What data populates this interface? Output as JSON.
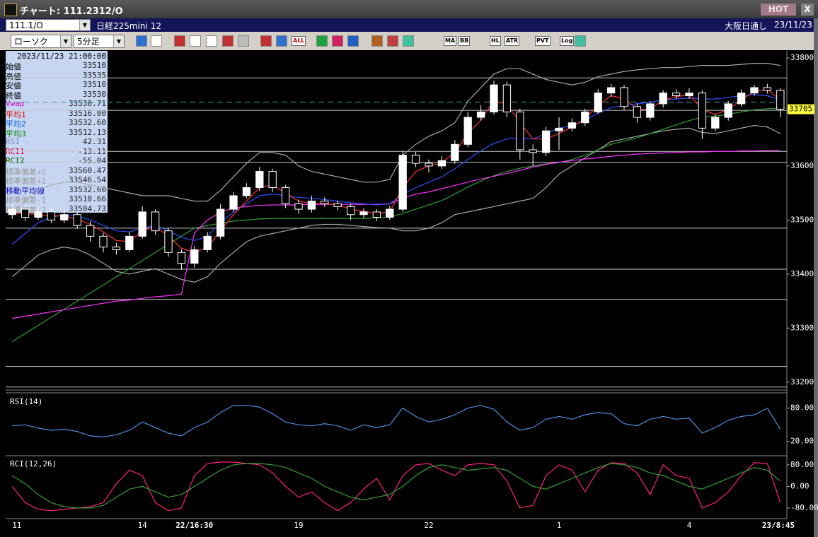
{
  "window": {
    "title": "チャート: 111.2312/O",
    "hot": "HOT",
    "close": "X",
    "symbol": "111.1/O",
    "instrument": "日経225mini 12",
    "market": "大阪日通し",
    "date": "23/11/23"
  },
  "toolbar": {
    "chart_type": "ローソク",
    "timeframe": "5分足",
    "labels": [
      "ALL",
      "MA",
      "BB",
      "HL",
      "ATR",
      "PVT",
      "Log"
    ]
  },
  "info_panel": {
    "datetime": "2023/11/23 21:00:00",
    "rows": [
      {
        "name": "始値",
        "value": "33510",
        "color": "#000000"
      },
      {
        "name": "高値",
        "value": "33535",
        "color": "#000000"
      },
      {
        "name": "安値",
        "value": "33510",
        "color": "#000000"
      },
      {
        "name": "終値",
        "value": "33530",
        "color": "#000000"
      },
      {
        "name": "Vwap",
        "value": "33530.71",
        "color": "#d000d0"
      },
      {
        "name": "平均1",
        "value": "33516.00",
        "color": "#e00000"
      },
      {
        "name": "平均2",
        "value": "33532.60",
        "color": "#0060e0"
      },
      {
        "name": "平均3",
        "value": "33512.13",
        "color": "#008000"
      },
      {
        "name": "RSI",
        "value": "42.31",
        "color": "#7090c0"
      },
      {
        "name": "RCI1",
        "value": "-13.11",
        "color": "#e00040"
      },
      {
        "name": "RCI2",
        "value": "-55.04",
        "color": "#006000"
      },
      {
        "name": "標準偏差+2",
        "value": "33560.47",
        "color": "#9a9a9a"
      },
      {
        "name": "標準偏差+1",
        "value": "33546.54",
        "color": "#9a9a9a"
      },
      {
        "name": "移動平均線",
        "value": "33532.60",
        "color": "#0000c0"
      },
      {
        "name": "標準偏差-1",
        "value": "33518.66",
        "color": "#9a9a9a"
      },
      {
        "name": "標準偏差-2",
        "value": "33504.73",
        "color": "#9a9a9a"
      }
    ]
  },
  "chart_data": [
    {
      "type": "candlestick",
      "categories": [
        "11",
        null,
        null,
        null,
        null,
        null,
        null,
        null,
        null,
        null,
        "14",
        null,
        null,
        null,
        "22/16:30",
        null,
        null,
        null,
        null,
        null,
        null,
        null,
        "19",
        null,
        null,
        null,
        null,
        null,
        null,
        null,
        null,
        null,
        "22",
        null,
        null,
        null,
        null,
        null,
        null,
        null,
        null,
        null,
        "1",
        null,
        null,
        null,
        null,
        null,
        null,
        null,
        null,
        null,
        "4",
        null,
        null,
        null,
        null,
        null,
        null,
        "23/8:45"
      ],
      "open": [
        33510,
        33520,
        33505,
        33515,
        33500,
        33510,
        33490,
        33470,
        33450,
        33445,
        33470,
        33515,
        33480,
        33440,
        33420,
        33445,
        33470,
        33520,
        33545,
        33560,
        33590,
        33560,
        33530,
        33520,
        33535,
        33530,
        33525,
        33510,
        33515,
        33505,
        33520,
        33620,
        33605,
        33600,
        33610,
        33640,
        33690,
        33700,
        33750,
        33700,
        33630,
        33625,
        33665,
        33670,
        33680,
        33700,
        33735,
        33745,
        33710,
        33690,
        33715,
        33735,
        33730,
        33735,
        33670,
        33690,
        33715,
        33735,
        33745,
        33740
      ],
      "high": [
        33530,
        33528,
        33525,
        33522,
        33518,
        33515,
        33498,
        33476,
        33458,
        33478,
        33525,
        33520,
        33486,
        33446,
        33452,
        33478,
        33530,
        33552,
        33568,
        33598,
        33595,
        33565,
        33538,
        33545,
        33542,
        33536,
        33530,
        33522,
        33520,
        33526,
        33628,
        33626,
        33612,
        33618,
        33648,
        33700,
        33712,
        33758,
        33756,
        33706,
        33640,
        33672,
        33690,
        33688,
        33706,
        33742,
        33752,
        33750,
        33716,
        33720,
        33740,
        33742,
        33744,
        33740,
        33696,
        33720,
        33742,
        33750,
        33752,
        33744
      ],
      "low": [
        33502,
        33498,
        33500,
        33494,
        33495,
        33484,
        33460,
        33440,
        33436,
        33440,
        33465,
        33472,
        33432,
        33408,
        33412,
        33440,
        33464,
        33515,
        33540,
        33554,
        33552,
        33522,
        33512,
        33514,
        33524,
        33518,
        33500,
        33504,
        33498,
        33500,
        33515,
        33598,
        33588,
        33594,
        33604,
        33635,
        33684,
        33695,
        33690,
        33612,
        33600,
        33618,
        33630,
        33664,
        33674,
        33696,
        33728,
        33704,
        33680,
        33684,
        33708,
        33724,
        33724,
        33650,
        33664,
        33684,
        33710,
        33730,
        33734,
        33690
      ],
      "close": [
        33520,
        33505,
        33515,
        33500,
        33510,
        33490,
        33470,
        33450,
        33445,
        33470,
        33515,
        33480,
        33440,
        33420,
        33445,
        33470,
        33520,
        33545,
        33560,
        33590,
        33560,
        33530,
        33520,
        33535,
        33530,
        33525,
        33510,
        33515,
        33505,
        33520,
        33620,
        33605,
        33600,
        33610,
        33640,
        33690,
        33700,
        33750,
        33700,
        33630,
        33625,
        33665,
        33670,
        33680,
        33700,
        33735,
        33745,
        33710,
        33690,
        33715,
        33735,
        33730,
        33735,
        33670,
        33690,
        33715,
        33735,
        33745,
        33740,
        33705
      ],
      "series": [
        {
          "color": "#a8a8a8",
          "values": [
            33515,
            33535,
            33555,
            33565,
            33570,
            33570,
            33565,
            33560,
            33555,
            33550,
            33545,
            33545,
            33545,
            33540,
            33535,
            33535,
            33555,
            33580,
            33605,
            33625,
            33625,
            33620,
            33600,
            33590,
            33585,
            33580,
            33575,
            33570,
            33570,
            33575,
            33620,
            33640,
            33655,
            33665,
            33680,
            33720,
            33745,
            33770,
            33780,
            33780,
            33770,
            33760,
            33755,
            33750,
            33755,
            33765,
            33770,
            33775,
            33778,
            33780,
            33782,
            33782,
            33784,
            33786,
            33786,
            33786,
            33788,
            33790,
            33790,
            33786
          ]
        },
        {
          "color": "#a8a8a8",
          "values": [
            33395,
            33415,
            33435,
            33445,
            33450,
            33446,
            33435,
            33420,
            33405,
            33400,
            33405,
            33410,
            33400,
            33390,
            33385,
            33395,
            33420,
            33440,
            33460,
            33470,
            33475,
            33480,
            33485,
            33490,
            33492,
            33492,
            33490,
            33488,
            33486,
            33485,
            33480,
            33480,
            33485,
            33495,
            33510,
            33515,
            33520,
            33525,
            33530,
            33535,
            33540,
            33560,
            33585,
            33600,
            33615,
            33630,
            33645,
            33650,
            33655,
            33660,
            33665,
            33668,
            33670,
            33662,
            33660,
            33665,
            33670,
            33675,
            33672,
            33660
          ]
        },
        {
          "color": "#30a030",
          "values": [
            33275,
            33290,
            33305,
            33320,
            33335,
            33350,
            33365,
            33380,
            33395,
            33410,
            33425,
            33440,
            33455,
            33470,
            33485,
            33490,
            33494,
            33498,
            33500,
            33502,
            33503,
            33503,
            33503,
            33503,
            33503,
            33503,
            33503,
            33503,
            33504,
            33506,
            33512,
            33520,
            33528,
            33536,
            33548,
            33561,
            33572,
            33582,
            33590,
            33596,
            33600,
            33604,
            33606,
            33612,
            33620,
            33630,
            33640,
            33646,
            33652,
            33660,
            33668,
            33676,
            33684,
            33690,
            33692,
            33696,
            33700,
            33704,
            33706,
            33707
          ]
        },
        {
          "color": "#ff30ff",
          "values": [
            33318,
            33322,
            33326,
            33330,
            33334,
            33338,
            33342,
            33346,
            33350,
            33352,
            33355,
            33358,
            33360,
            33363,
            33476,
            33500,
            33515,
            33522,
            33525,
            33527,
            33528,
            33528,
            33528,
            33529,
            33529,
            33529,
            33529,
            33529,
            33529,
            33530,
            33540,
            33548,
            33552,
            33558,
            33564,
            33570,
            33576,
            33581,
            33586,
            33592,
            33598,
            33603,
            33607,
            33610,
            33613,
            33615,
            33618,
            33620,
            33622,
            33623,
            33624,
            33625,
            33626,
            33626,
            33627,
            33627,
            33628,
            33628,
            33629,
            33629
          ]
        },
        {
          "color": "#3050ff",
          "values": [
            33455,
            33475,
            33495,
            33505,
            33510,
            33508,
            33500,
            33490,
            33480,
            33478,
            33485,
            33490,
            33480,
            33468,
            33462,
            33470,
            33495,
            33515,
            33530,
            33545,
            33548,
            33545,
            33542,
            33540,
            33538,
            33535,
            33532,
            33530,
            33528,
            33530,
            33548,
            33560,
            33570,
            33580,
            33595,
            33612,
            33628,
            33642,
            33650,
            33652,
            33650,
            33660,
            33670,
            33675,
            33685,
            33698,
            33708,
            33712,
            33715,
            33718,
            33722,
            33724,
            33726,
            33724,
            33724,
            33727,
            33730,
            33732,
            33730,
            33722
          ]
        },
        {
          "color": "#ff3030",
          "values": [
            33512,
            33512,
            33510,
            33508,
            33507,
            33502,
            33492,
            33478,
            33462,
            33460,
            33480,
            33488,
            33470,
            33448,
            33440,
            33450,
            33480,
            33510,
            33535,
            33560,
            33565,
            33550,
            33535,
            33530,
            33530,
            33528,
            33520,
            33516,
            33512,
            33515,
            33560,
            33590,
            33600,
            33606,
            33625,
            33660,
            33685,
            33720,
            33715,
            33680,
            33650,
            33650,
            33660,
            33672,
            33688,
            33712,
            33730,
            33725,
            33705,
            33705,
            33722,
            33728,
            33732,
            33705,
            33695,
            33705,
            33722,
            33738,
            33742,
            33722
          ]
        }
      ],
      "levels": [
        33763,
        33703,
        33627,
        33607,
        33485,
        33409,
        33353,
        33229,
        33191
      ],
      "dashed_level": 33718,
      "last_price": 33705,
      "ylim": [
        33188,
        33813
      ],
      "yticks": [
        33200,
        33300,
        33400,
        33500,
        33600,
        33700,
        33800
      ]
    },
    {
      "type": "line",
      "title": "RSI(14)",
      "series": [
        {
          "color": "#4a90e0",
          "values": [
            48,
            50,
            44,
            40,
            42,
            38,
            30,
            28,
            32,
            40,
            55,
            45,
            35,
            30,
            45,
            55,
            72,
            85,
            85,
            82,
            70,
            55,
            50,
            48,
            52,
            48,
            40,
            50,
            45,
            50,
            80,
            65,
            55,
            60,
            68,
            80,
            85,
            78,
            55,
            40,
            45,
            60,
            65,
            60,
            68,
            72,
            70,
            52,
            48,
            60,
            65,
            60,
            62,
            35,
            45,
            58,
            65,
            68,
            80,
            42
          ]
        }
      ],
      "ylim": [
        -2,
        105
      ],
      "yticks": [
        {
          "value": 20,
          "label": "20.00"
        },
        {
          "value": 80,
          "label": "80.00"
        }
      ]
    },
    {
      "type": "line",
      "title": "RCI(12,26)",
      "series": [
        {
          "color": "#ff2080",
          "values": [
            0,
            -60,
            -85,
            -90,
            -85,
            -80,
            -75,
            -60,
            10,
            60,
            40,
            -60,
            -90,
            -80,
            40,
            85,
            90,
            90,
            85,
            80,
            50,
            0,
            -40,
            -20,
            -60,
            -90,
            -60,
            -10,
            30,
            -50,
            40,
            80,
            85,
            60,
            40,
            80,
            85,
            80,
            20,
            -80,
            -70,
            40,
            80,
            60,
            -20,
            60,
            88,
            85,
            50,
            -30,
            80,
            40,
            30,
            -80,
            -60,
            -20,
            40,
            88,
            85,
            -60
          ]
        },
        {
          "color": "#30a030",
          "values": [
            40,
            10,
            -30,
            -60,
            -75,
            -80,
            -80,
            -70,
            -40,
            -10,
            0,
            -20,
            -40,
            -30,
            0,
            30,
            60,
            80,
            85,
            85,
            80,
            70,
            50,
            30,
            0,
            -20,
            -40,
            -50,
            -40,
            -30,
            0,
            40,
            70,
            80,
            70,
            60,
            65,
            70,
            60,
            30,
            0,
            -10,
            10,
            30,
            50,
            70,
            85,
            80,
            70,
            50,
            40,
            20,
            0,
            -10,
            10,
            30,
            50,
            70,
            60,
            20
          ]
        }
      ],
      "ylim": [
        -114,
        111
      ],
      "yticks": [
        {
          "value": -80,
          "label": "-80.00"
        },
        {
          "value": 0,
          "label": "0.00"
        },
        {
          "value": 80,
          "label": "80.00"
        }
      ]
    }
  ]
}
